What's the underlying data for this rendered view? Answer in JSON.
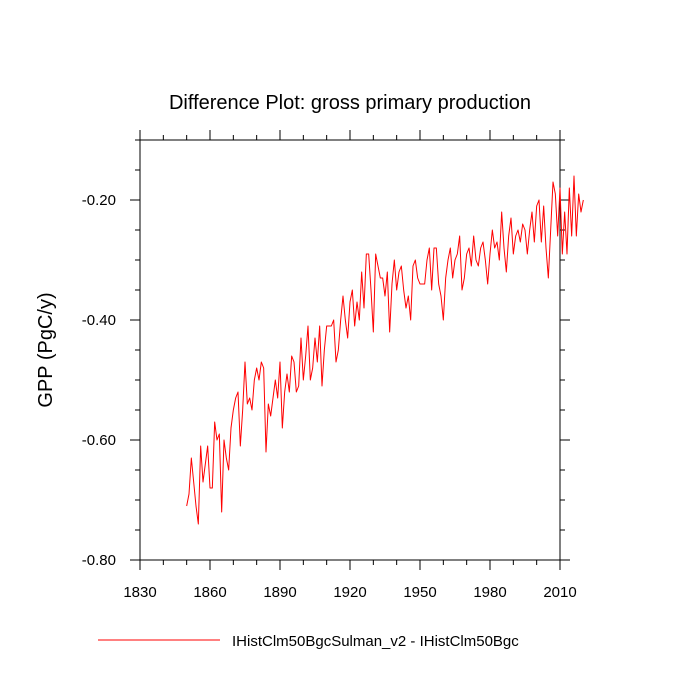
{
  "chart_data": {
    "type": "line",
    "title": "Difference Plot: gross primary production",
    "ylabel": "GPP  (PgC/y)",
    "xlabel": "",
    "xlim": [
      1830,
      2010
    ],
    "ylim": [
      -0.8,
      -0.1
    ],
    "x_ticks": [
      1830,
      1860,
      1890,
      1920,
      1950,
      1980,
      2010
    ],
    "x_tick_labels": [
      "1830",
      "1860",
      "1890",
      "1920",
      "1950",
      "1980",
      "2010"
    ],
    "y_ticks": [
      -0.8,
      -0.6,
      -0.4,
      -0.2
    ],
    "y_tick_labels": [
      "-0.80",
      "-0.60",
      "-0.40",
      "-0.20"
    ],
    "series": [
      {
        "name": "IHistClm50BgcSulman_v2 - IHistClm50Bgc",
        "color": "#ff0000",
        "x_start": 1850,
        "x_step": 1,
        "values": [
          -0.71,
          -0.69,
          -0.63,
          -0.67,
          -0.71,
          -0.74,
          -0.61,
          -0.67,
          -0.64,
          -0.61,
          -0.68,
          -0.68,
          -0.57,
          -0.6,
          -0.59,
          -0.72,
          -0.6,
          -0.63,
          -0.65,
          -0.58,
          -0.55,
          -0.53,
          -0.52,
          -0.61,
          -0.55,
          -0.47,
          -0.54,
          -0.53,
          -0.55,
          -0.5,
          -0.48,
          -0.5,
          -0.47,
          -0.48,
          -0.62,
          -0.54,
          -0.56,
          -0.53,
          -0.5,
          -0.53,
          -0.47,
          -0.58,
          -0.52,
          -0.49,
          -0.52,
          -0.46,
          -0.47,
          -0.52,
          -0.51,
          -0.43,
          -0.5,
          -0.46,
          -0.41,
          -0.5,
          -0.48,
          -0.43,
          -0.47,
          -0.41,
          -0.51,
          -0.45,
          -0.41,
          -0.41,
          -0.41,
          -0.4,
          -0.47,
          -0.45,
          -0.4,
          -0.36,
          -0.4,
          -0.43,
          -0.37,
          -0.35,
          -0.41,
          -0.37,
          -0.4,
          -0.32,
          -0.38,
          -0.29,
          -0.29,
          -0.35,
          -0.42,
          -0.29,
          -0.31,
          -0.33,
          -0.33,
          -0.36,
          -0.32,
          -0.42,
          -0.34,
          -0.3,
          -0.35,
          -0.32,
          -0.31,
          -0.35,
          -0.38,
          -0.36,
          -0.4,
          -0.31,
          -0.3,
          -0.33,
          -0.34,
          -0.34,
          -0.34,
          -0.3,
          -0.28,
          -0.35,
          -0.28,
          -0.28,
          -0.34,
          -0.36,
          -0.4,
          -0.33,
          -0.3,
          -0.28,
          -0.33,
          -0.3,
          -0.29,
          -0.26,
          -0.35,
          -0.33,
          -0.29,
          -0.28,
          -0.31,
          -0.26,
          -0.3,
          -0.31,
          -0.28,
          -0.27,
          -0.3,
          -0.34,
          -0.29,
          -0.25,
          -0.28,
          -0.27,
          -0.3,
          -0.22,
          -0.28,
          -0.32,
          -0.26,
          -0.23,
          -0.29,
          -0.26,
          -0.25,
          -0.27,
          -0.24,
          -0.25,
          -0.29,
          -0.25,
          -0.22,
          -0.27,
          -0.21,
          -0.2,
          -0.27,
          -0.21,
          -0.28,
          -0.33,
          -0.25,
          -0.17,
          -0.19,
          -0.26,
          -0.18,
          -0.29,
          -0.22,
          -0.29,
          -0.18,
          -0.26,
          -0.16,
          -0.26,
          -0.19,
          -0.22,
          -0.2
        ]
      }
    ],
    "grid": false,
    "legend": "bottom-center"
  }
}
